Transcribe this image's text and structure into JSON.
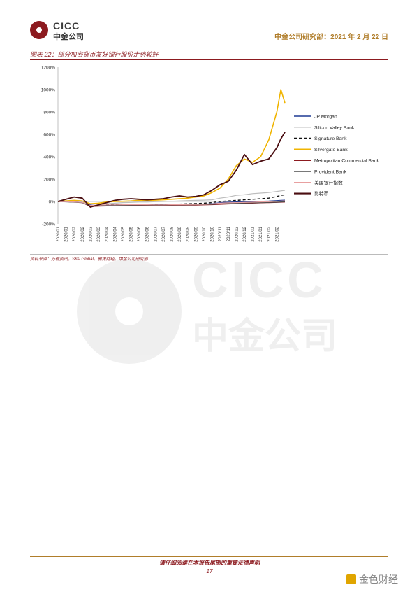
{
  "header": {
    "logo_text": "CICC",
    "logo_cn": "中金公司",
    "right_text": "中金公司研究部：2021 年 2 月 22 日"
  },
  "figure": {
    "title": "图表 22：部分加密货币友好银行股价走势较好",
    "source": "资料来源：万得资讯，S&P Global，雅虎财经，中金公司研究部"
  },
  "chart_data": {
    "type": "line",
    "title": "",
    "xlabel": "",
    "ylabel": "",
    "ylim": [
      -200,
      1200
    ],
    "yticks": [
      "-200%",
      "0%",
      "200%",
      "400%",
      "600%",
      "800%",
      "1000%",
      "1200%"
    ],
    "ytick_values": [
      -200,
      0,
      200,
      400,
      600,
      800,
      1000,
      1200
    ],
    "xticks": [
      "2020/01",
      "2020/01",
      "2020/02",
      "2020/02",
      "2020/03",
      "2020/03",
      "2020/04",
      "2020/04",
      "2020/05",
      "2020/05",
      "2020/06",
      "2020/06",
      "2020/07",
      "2020/07",
      "2020/08",
      "2020/08",
      "2020/09",
      "2020/09",
      "2020/10",
      "2020/10",
      "2020/11",
      "2020/11",
      "2020/12",
      "2020/12",
      "2021/01",
      "2021/01",
      "2021/02",
      "2021/02"
    ],
    "x_index": [
      0,
      2,
      4,
      6,
      8,
      10,
      12,
      14,
      16,
      18,
      20,
      22,
      24,
      26,
      28,
      30,
      32,
      34,
      36,
      38,
      40,
      42,
      44,
      46,
      48,
      50,
      52,
      54,
      55,
      56
    ],
    "legend_position": "right",
    "series": [
      {
        "name": "JP Morgan",
        "color": "#1f3a93",
        "width": 1.2,
        "dash": "",
        "values": [
          0,
          -2,
          -4,
          -8,
          -30,
          -38,
          -32,
          -30,
          -28,
          -27,
          -26,
          -27,
          -28,
          -28,
          -27,
          -26,
          -25,
          -25,
          -23,
          -20,
          -10,
          -6,
          -4,
          -2,
          0,
          2,
          4,
          8,
          10,
          12
        ]
      },
      {
        "name": "Silicon Valley Bank",
        "color": "#bdbdbd",
        "width": 1.2,
        "dash": "",
        "values": [
          0,
          5,
          10,
          5,
          -40,
          -30,
          -20,
          -15,
          -10,
          -8,
          -5,
          -5,
          -2,
          0,
          2,
          5,
          8,
          10,
          12,
          15,
          30,
          40,
          55,
          60,
          70,
          75,
          80,
          90,
          95,
          100
        ]
      },
      {
        "name": "Signature Bank",
        "color": "#111111",
        "width": 1.4,
        "dash": "4,3",
        "values": [
          0,
          0,
          -5,
          -10,
          -40,
          -35,
          -30,
          -28,
          -26,
          -25,
          -25,
          -26,
          -27,
          -26,
          -25,
          -23,
          -20,
          -18,
          -15,
          -10,
          0,
          5,
          10,
          15,
          20,
          25,
          30,
          45,
          55,
          60
        ]
      },
      {
        "name": "Silvergate Bank",
        "color": "#f0b400",
        "width": 1.6,
        "dash": "",
        "values": [
          0,
          5,
          10,
          5,
          -20,
          -15,
          -5,
          0,
          2,
          5,
          10,
          10,
          12,
          15,
          20,
          25,
          30,
          40,
          50,
          80,
          120,
          200,
          320,
          380,
          350,
          400,
          550,
          800,
          1000,
          880
        ]
      },
      {
        "name": "Metropolitan Commercial Bank",
        "color": "#8c1a1f",
        "width": 1.2,
        "dash": "",
        "values": [
          0,
          -2,
          -5,
          -10,
          -45,
          -42,
          -40,
          -38,
          -36,
          -36,
          -35,
          -36,
          -36,
          -35,
          -34,
          -33,
          -32,
          -32,
          -30,
          -28,
          -25,
          -22,
          -20,
          -18,
          -15,
          -12,
          -10,
          -8,
          -6,
          -5
        ]
      },
      {
        "name": "Provident Bank",
        "color": "#4d4d4d",
        "width": 1.2,
        "dash": "",
        "values": [
          0,
          -3,
          -6,
          -10,
          -42,
          -40,
          -38,
          -36,
          -34,
          -33,
          -32,
          -32,
          -33,
          -32,
          -31,
          -30,
          -29,
          -28,
          -27,
          -25,
          -20,
          -18,
          -16,
          -14,
          -12,
          -10,
          -8,
          -6,
          -4,
          -2
        ]
      },
      {
        "name": "美国银行指数",
        "color": "#e8a0a0",
        "width": 1.2,
        "dash": "",
        "values": [
          0,
          -2,
          -4,
          -8,
          -35,
          -32,
          -30,
          -30,
          -29,
          -28,
          -28,
          -29,
          -30,
          -30,
          -29,
          -28,
          -27,
          -26,
          -25,
          -22,
          -15,
          -12,
          -10,
          -8,
          -6,
          -4,
          -2,
          2,
          4,
          6
        ]
      },
      {
        "name": "比特币",
        "color": "#4a0d10",
        "width": 1.8,
        "dash": "",
        "values": [
          0,
          20,
          40,
          30,
          -50,
          -30,
          -10,
          10,
          20,
          25,
          20,
          15,
          20,
          25,
          40,
          50,
          40,
          45,
          60,
          100,
          150,
          180,
          280,
          420,
          330,
          360,
          380,
          480,
          560,
          620
        ]
      }
    ]
  },
  "watermark": {
    "text": "CICC",
    "cn": "中金公司"
  },
  "footer": {
    "note": "请仔细阅读在本报告尾部的重要法律声明",
    "page": "17",
    "site": "金色财经"
  }
}
